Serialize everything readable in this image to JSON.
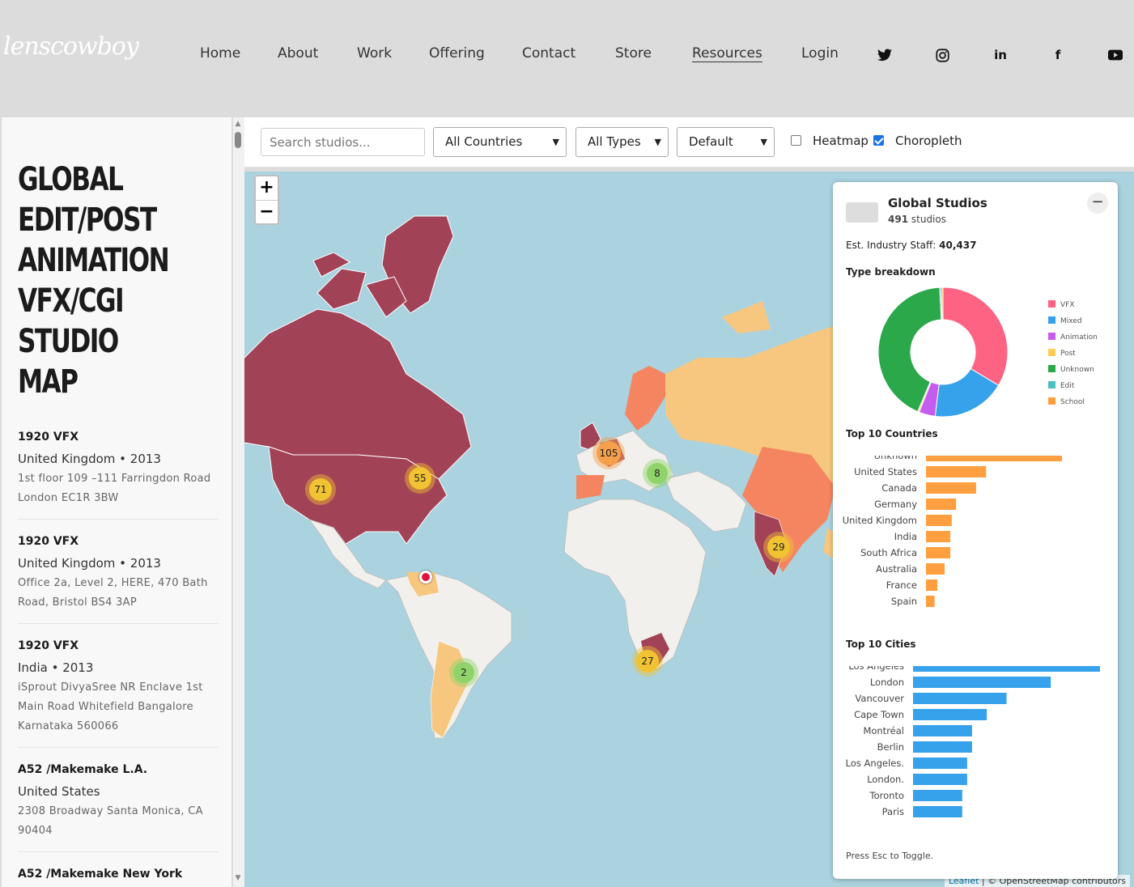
{
  "logo": {
    "text": "lenscowboy"
  },
  "nav": {
    "items": [
      {
        "label": "Home"
      },
      {
        "label": "About"
      },
      {
        "label": "Work"
      },
      {
        "label": "Offering"
      },
      {
        "label": "Contact"
      },
      {
        "label": "Store"
      },
      {
        "label": "Resources"
      },
      {
        "label": "Login"
      }
    ],
    "active": "Resources",
    "social_icons": [
      "twitter-icon",
      "instagram-icon",
      "linkedin-icon",
      "facebook-icon",
      "youtube-icon"
    ]
  },
  "sidebar": {
    "title": "GLOBAL EDIT/POST ANIMATION VFX/CGI STUDIO MAP",
    "studios": [
      {
        "name": "1920 VFX",
        "meta": "United Kingdom • 2013",
        "address": "1st floor 109 –111 Farringdon Road London EC1R 3BW"
      },
      {
        "name": "1920 VFX",
        "meta": "United Kingdom • 2013",
        "address": "Office 2a, Level 2, HERE, 470 Bath Road, Bristol BS4 3AP"
      },
      {
        "name": "1920 VFX",
        "meta": "India • 2013",
        "address": "iSprout DivyaSree NR Enclave 1st Main Road Whitefield Bangalore Karnataka 560066"
      },
      {
        "name": "A52 /Makemake L.A.",
        "meta": "United States",
        "address": "2308 Broadway Santa Monica, CA 90404"
      },
      {
        "name": "A52 /Makemake New York",
        "meta": "",
        "address": ""
      }
    ]
  },
  "toolbar": {
    "search_placeholder": "Search studios...",
    "country_select": "All Countries",
    "type_select": "All Types",
    "sort_select": "Default",
    "heatmap_label": "Heatmap",
    "heatmap_checked": false,
    "choropleth_label": "Choropleth",
    "choropleth_checked": true
  },
  "map": {
    "zoom_in": "+",
    "zoom_out": "−",
    "clusters": [
      {
        "count": "71",
        "color": "#f1c232"
      },
      {
        "count": "55",
        "color": "#f1c232"
      },
      {
        "count": "105",
        "color": "#f6a04d"
      },
      {
        "count": "8",
        "color": "#8fd36a"
      },
      {
        "count": "29",
        "color": "#f1c232"
      },
      {
        "count": "2",
        "color": "#8fd36a"
      },
      {
        "count": "27",
        "color": "#f1c232"
      }
    ],
    "attribution_link": "Leaflet",
    "attribution_text": " | © OpenStreetMap contributors"
  },
  "panel": {
    "title": "Global Studios",
    "count": "491",
    "count_suffix": " studios",
    "staff_label": "Est. Industry Staff: ",
    "staff_value": "40,437",
    "type_title": "Type breakdown",
    "countries_title": "Top 10 Countries",
    "cities_title": "Top 10 Cities",
    "hint": "Press Esc to Toggle.",
    "collapse": "−"
  },
  "chart_data": [
    {
      "type": "pie",
      "title": "Type breakdown",
      "categories": [
        "VFX",
        "Mixed",
        "Animation",
        "Post",
        "Unknown",
        "Edit",
        "School"
      ],
      "values": [
        165,
        90,
        20,
        2,
        210,
        2,
        2
      ],
      "colors": [
        "#ff6384",
        "#36a2eb",
        "#c45cf0",
        "#ffcd56",
        "#2ba84a",
        "#4bc0c0",
        "#ff9f40"
      ],
      "legend": "right"
    },
    {
      "type": "bar",
      "orientation": "horizontal",
      "title": "Top 10 Countries",
      "categories": [
        "Unknown",
        "United States",
        "Canada",
        "Germany",
        "United Kingdom",
        "India",
        "South Africa",
        "Australia",
        "France",
        "Spain"
      ],
      "values": [
        95,
        42,
        35,
        21,
        18,
        17,
        17,
        13,
        8,
        6
      ],
      "color": "#ff9f40"
    },
    {
      "type": "bar",
      "orientation": "horizontal",
      "title": "Top 10 Cities",
      "categories": [
        "Los Angeles",
        "London",
        "Vancouver",
        "Cape Town",
        "Montréal",
        "Berlin",
        "Los Angeles.",
        "London.",
        "Toronto",
        "Paris"
      ],
      "values": [
        38,
        28,
        19,
        15,
        12,
        12,
        11,
        11,
        10,
        10
      ],
      "color": "#36a2eb"
    }
  ]
}
